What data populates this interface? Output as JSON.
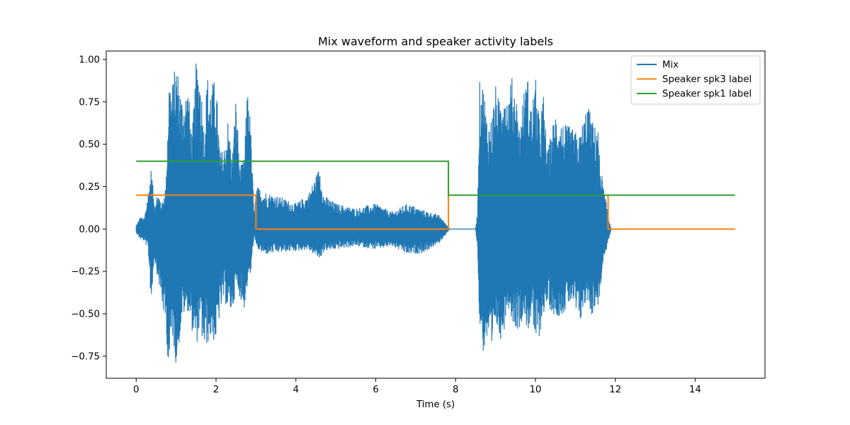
{
  "chart_data": {
    "type": "line",
    "title": "Mix waveform and speaker activity labels",
    "xlabel": "Time (s)",
    "ylabel": "",
    "xlim": [
      -0.75,
      15.75
    ],
    "ylim": [
      -0.88,
      1.05
    ],
    "xticks": [
      0,
      2,
      4,
      6,
      8,
      10,
      12,
      14
    ],
    "xtick_labels": [
      "0",
      "2",
      "4",
      "6",
      "8",
      "10",
      "12",
      "14"
    ],
    "yticks": [
      -0.75,
      -0.5,
      -0.25,
      0.0,
      0.25,
      0.5,
      0.75,
      1.0
    ],
    "ytick_labels": [
      "−0.75",
      "−0.50",
      "−0.25",
      "0.00",
      "0.25",
      "0.50",
      "0.75",
      "1.00"
    ],
    "grid": false,
    "legend_position": "top-right",
    "series": [
      {
        "name": "Mix",
        "color": "#1f77b4",
        "kind": "waveform",
        "envelope": {
          "t": [
            0.0,
            0.1,
            0.2,
            0.3,
            0.38,
            0.45,
            0.55,
            0.65,
            0.75,
            0.82,
            0.9,
            1.0,
            1.05,
            1.15,
            1.3,
            1.4,
            1.5,
            1.6,
            1.7,
            1.78,
            1.85,
            2.0,
            2.1,
            2.2,
            2.3,
            2.4,
            2.5,
            2.6,
            2.7,
            2.8,
            2.88,
            2.95,
            3.0,
            3.05,
            3.2,
            3.5,
            4.0,
            4.3,
            4.6,
            4.7,
            5.0,
            5.5,
            6.0,
            6.4,
            6.8,
            7.2,
            7.6,
            7.82,
            7.85,
            8.5,
            8.55,
            8.6,
            8.7,
            8.8,
            8.9,
            9.0,
            9.1,
            9.2,
            9.3,
            9.4,
            9.5,
            9.6,
            9.7,
            9.8,
            9.9,
            10.0,
            10.1,
            10.2,
            10.3,
            10.5,
            10.7,
            10.9,
            11.1,
            11.3,
            11.4,
            11.5,
            11.55,
            11.6,
            11.7,
            11.8,
            11.85,
            11.9
          ],
          "upper": [
            0.02,
            0.07,
            0.06,
            0.22,
            0.37,
            0.16,
            0.22,
            0.15,
            0.28,
            0.92,
            0.85,
            1.0,
            0.93,
            0.78,
            0.85,
            0.55,
            0.98,
            0.95,
            0.6,
            0.92,
            0.85,
            0.89,
            0.45,
            0.48,
            0.65,
            0.42,
            0.8,
            0.36,
            0.42,
            0.9,
            0.54,
            0.1,
            0.22,
            0.25,
            0.22,
            0.2,
            0.15,
            0.2,
            0.37,
            0.2,
            0.15,
            0.12,
            0.15,
            0.1,
            0.15,
            0.11,
            0.08,
            0.01,
            0.0,
            0.0,
            0.1,
            0.87,
            0.86,
            0.63,
            0.66,
            0.85,
            0.75,
            0.93,
            0.78,
            0.9,
            0.85,
            0.6,
            0.8,
            0.91,
            0.72,
            0.9,
            0.65,
            0.8,
            0.45,
            0.7,
            0.62,
            0.6,
            0.55,
            0.75,
            0.66,
            0.6,
            0.68,
            0.45,
            0.25,
            0.12,
            0.05,
            0.0
          ],
          "lower": [
            -0.02,
            -0.06,
            -0.07,
            -0.12,
            -0.46,
            -0.17,
            -0.3,
            -0.45,
            -0.6,
            -0.87,
            -0.62,
            -0.8,
            -0.73,
            -0.52,
            -0.48,
            -0.6,
            -0.7,
            -0.58,
            -0.73,
            -0.68,
            -0.65,
            -0.67,
            -0.5,
            -0.42,
            -0.48,
            -0.5,
            -0.35,
            -0.4,
            -0.48,
            -0.31,
            -0.26,
            -0.04,
            -0.1,
            -0.12,
            -0.15,
            -0.14,
            -0.13,
            -0.12,
            -0.18,
            -0.13,
            -0.12,
            -0.1,
            -0.12,
            -0.1,
            -0.15,
            -0.14,
            -0.08,
            -0.01,
            0.0,
            0.0,
            -0.12,
            -0.57,
            -0.74,
            -0.65,
            -0.82,
            -0.55,
            -0.66,
            -0.62,
            -0.44,
            -0.53,
            -0.58,
            -0.6,
            -0.49,
            -0.61,
            -0.53,
            -0.68,
            -0.64,
            -0.5,
            -0.45,
            -0.52,
            -0.5,
            -0.43,
            -0.57,
            -0.41,
            -0.52,
            -0.46,
            -0.47,
            -0.42,
            -0.2,
            -0.1,
            -0.05,
            0.0
          ]
        }
      },
      {
        "name": "Speaker spk3 label",
        "color": "#ff7f0e",
        "kind": "step",
        "points": [
          [
            0,
            0.2
          ],
          [
            3.0,
            0.2
          ],
          [
            3.0,
            0.0
          ],
          [
            7.82,
            0.0
          ],
          [
            7.82,
            0.2
          ],
          [
            11.82,
            0.2
          ],
          [
            11.82,
            0.0
          ],
          [
            15.0,
            0.0
          ]
        ]
      },
      {
        "name": "Speaker spk1 label",
        "color": "#2ca02c",
        "kind": "step",
        "points": [
          [
            0,
            0.4
          ],
          [
            7.82,
            0.4
          ],
          [
            7.82,
            0.2
          ],
          [
            15.0,
            0.2
          ]
        ]
      }
    ]
  }
}
